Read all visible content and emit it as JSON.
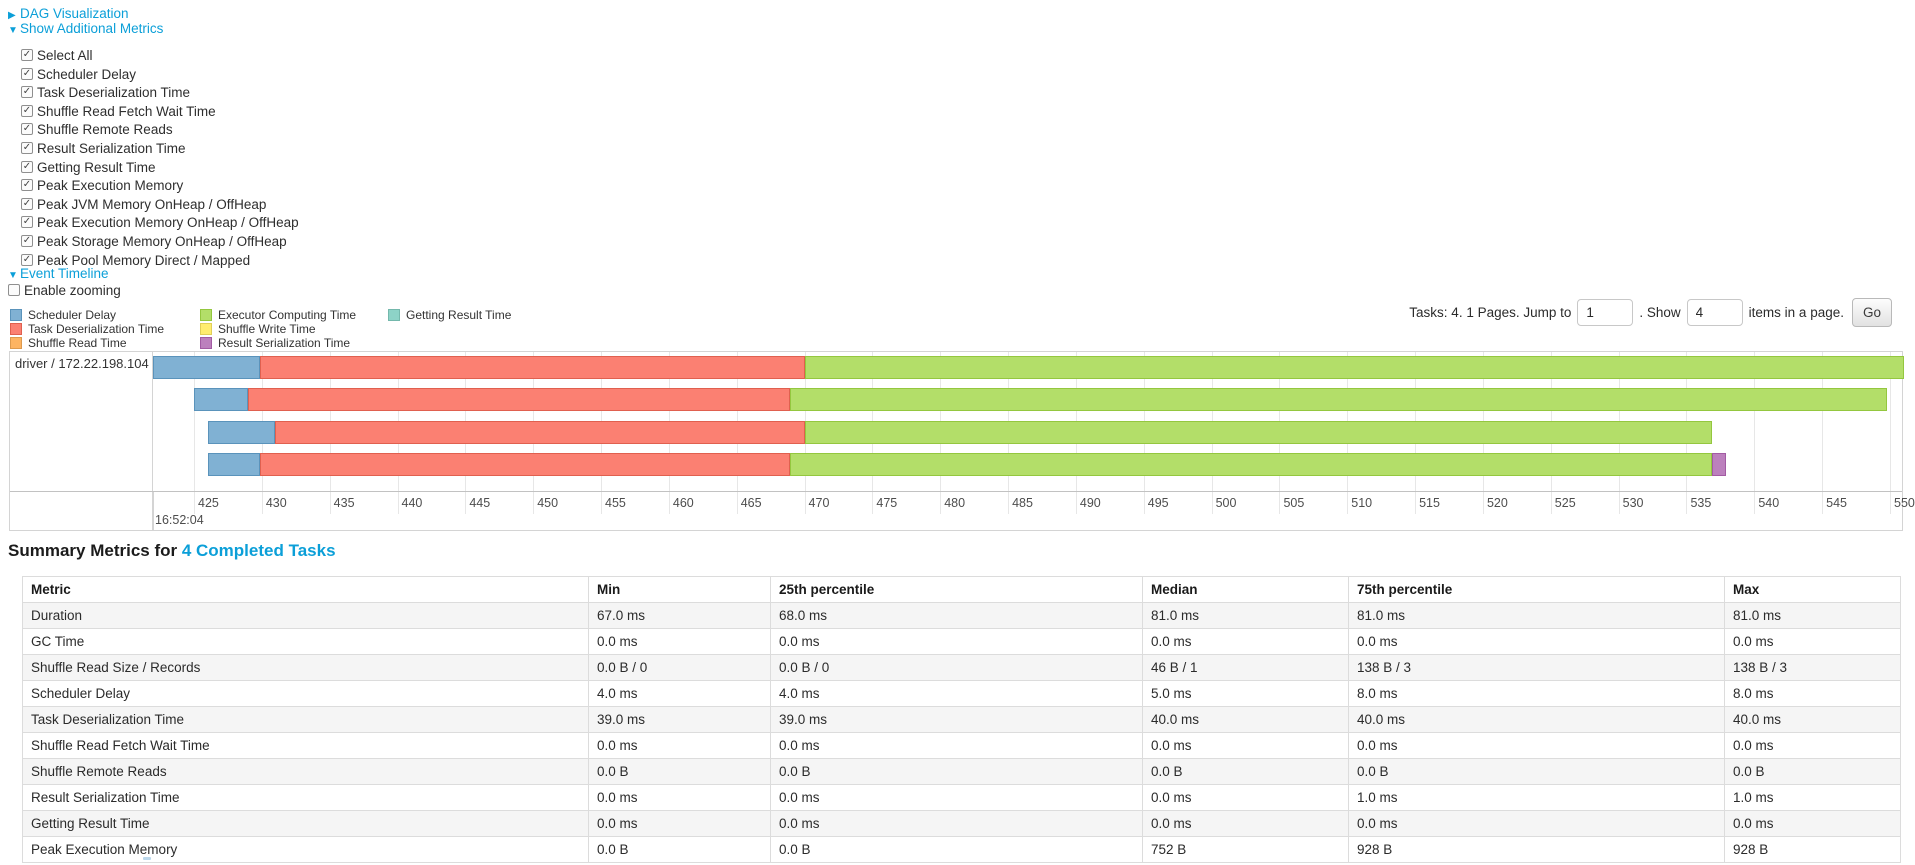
{
  "nav": {
    "dag_label": "DAG Visualization",
    "metrics_label": "Show Additional Metrics",
    "timeline_label": "Event Timeline",
    "enable_zooming_label": "Enable zooming",
    "link_color": "#0b9fd8"
  },
  "additional_metrics": {
    "items": [
      "Select All",
      "Scheduler Delay",
      "Task Deserialization Time",
      "Shuffle Read Fetch Wait Time",
      "Shuffle Remote Reads",
      "Result Serialization Time",
      "Getting Result Time",
      "Peak Execution Memory",
      "Peak JVM Memory OnHeap / OffHeap",
      "Peak Execution Memory OnHeap / OffHeap",
      "Peak Storage Memory OnHeap / OffHeap",
      "Peak Pool Memory Direct / Mapped"
    ],
    "all_checked": true
  },
  "legend": {
    "entries": [
      {
        "key": "scheduler_delay",
        "label": "Scheduler Delay",
        "color": "#80B1D3",
        "border": "#5a93bb",
        "col": 0,
        "row": 0
      },
      {
        "key": "task_deserialization",
        "label": "Task Deserialization Time",
        "color": "#FB8072",
        "border": "#e0604f",
        "col": 0,
        "row": 1
      },
      {
        "key": "shuffle_read",
        "label": "Shuffle Read Time",
        "color": "#FDB462",
        "border": "#dd9a4e",
        "col": 0,
        "row": 2
      },
      {
        "key": "executor_computing",
        "label": "Executor Computing Time",
        "color": "#B3DE69",
        "border": "#94c73f",
        "col": 1,
        "row": 0
      },
      {
        "key": "shuffle_write",
        "label": "Shuffle Write Time",
        "color": "#FFED6F",
        "border": "#e0cf58",
        "col": 1,
        "row": 1
      },
      {
        "key": "result_serialization",
        "label": "Result Serialization Time",
        "color": "#BC80BD",
        "border": "#a25ba3",
        "col": 1,
        "row": 2
      },
      {
        "key": "getting_result",
        "label": "Getting Result Time",
        "color": "#8DD3C7",
        "border": "#74b8ac",
        "col": 2,
        "row": 0
      }
    ]
  },
  "pagination": {
    "prefix": "Tasks: 4. 1 Pages. Jump to",
    "jump_value": "1",
    "mid": ". Show",
    "show_value": "4",
    "suffix": "items in a page.",
    "go_label": "Go"
  },
  "timeline": {
    "row_label": "driver / 172.22.198.104",
    "axis": {
      "tick_start": 425,
      "tick_step": 5,
      "tick_count": 26,
      "tick_labels": [
        "425",
        "430",
        "435",
        "440",
        "445",
        "450",
        "455",
        "460",
        "465",
        "470",
        "475",
        "480",
        "485",
        "490",
        "495",
        "500",
        "505",
        "510",
        "515",
        "520",
        "525",
        "530",
        "535",
        "540",
        "545",
        "550"
      ],
      "major_time_label": "16:52:04"
    },
    "bars": [
      {
        "segments": [
          {
            "key": "scheduler_delay",
            "from": 422.0,
            "to": 429.9
          },
          {
            "key": "task_deserialization",
            "from": 429.9,
            "to": 470.0
          },
          {
            "key": "executor_computing",
            "from": 470.0,
            "to": 551.0
          }
        ]
      },
      {
        "segments": [
          {
            "key": "scheduler_delay",
            "from": 425.0,
            "to": 429.0
          },
          {
            "key": "task_deserialization",
            "from": 429.0,
            "to": 468.9
          },
          {
            "key": "executor_computing",
            "from": 468.9,
            "to": 549.8
          }
        ]
      },
      {
        "segments": [
          {
            "key": "scheduler_delay",
            "from": 426.0,
            "to": 431.0
          },
          {
            "key": "task_deserialization",
            "from": 431.0,
            "to": 470.0
          },
          {
            "key": "executor_computing",
            "from": 470.0,
            "to": 536.9
          }
        ]
      },
      {
        "segments": [
          {
            "key": "scheduler_delay",
            "from": 426.0,
            "to": 429.9
          },
          {
            "key": "task_deserialization",
            "from": 429.9,
            "to": 468.9
          },
          {
            "key": "executor_computing",
            "from": 468.9,
            "to": 536.9
          },
          {
            "key": "result_serialization",
            "from": 536.9,
            "to": 537.9
          }
        ]
      }
    ]
  },
  "summary": {
    "title_prefix": "Summary Metrics for ",
    "title_link": "4 Completed Tasks",
    "columns": [
      "Metric",
      "Min",
      "25th percentile",
      "Median",
      "75th percentile",
      "Max"
    ],
    "rows": [
      {
        "metric": "Duration",
        "values": [
          "67.0 ms",
          "68.0 ms",
          "81.0 ms",
          "81.0 ms",
          "81.0 ms"
        ]
      },
      {
        "metric": "GC Time",
        "values": [
          "0.0 ms",
          "0.0 ms",
          "0.0 ms",
          "0.0 ms",
          "0.0 ms"
        ]
      },
      {
        "metric": "Shuffle Read Size / Records",
        "values": [
          "0.0 B / 0",
          "0.0 B / 0",
          "46 B / 1",
          "138 B / 3",
          "138 B / 3"
        ]
      },
      {
        "metric": "Scheduler Delay",
        "values": [
          "4.0 ms",
          "4.0 ms",
          "5.0 ms",
          "8.0 ms",
          "8.0 ms"
        ]
      },
      {
        "metric": "Task Deserialization Time",
        "values": [
          "39.0 ms",
          "39.0 ms",
          "40.0 ms",
          "40.0 ms",
          "40.0 ms"
        ]
      },
      {
        "metric": "Shuffle Read Fetch Wait Time",
        "values": [
          "0.0 ms",
          "0.0 ms",
          "0.0 ms",
          "0.0 ms",
          "0.0 ms"
        ]
      },
      {
        "metric": "Shuffle Remote Reads",
        "values": [
          "0.0 B",
          "0.0 B",
          "0.0 B",
          "0.0 B",
          "0.0 B"
        ]
      },
      {
        "metric": "Result Serialization Time",
        "values": [
          "0.0 ms",
          "0.0 ms",
          "0.0 ms",
          "1.0 ms",
          "1.0 ms"
        ]
      },
      {
        "metric": "Getting Result Time",
        "values": [
          "0.0 ms",
          "0.0 ms",
          "0.0 ms",
          "0.0 ms",
          "0.0 ms"
        ]
      },
      {
        "metric": "Peak Execution Memory",
        "values": [
          "0.0 B",
          "0.0 B",
          "752 B",
          "928 B",
          "928 B"
        ]
      }
    ]
  }
}
